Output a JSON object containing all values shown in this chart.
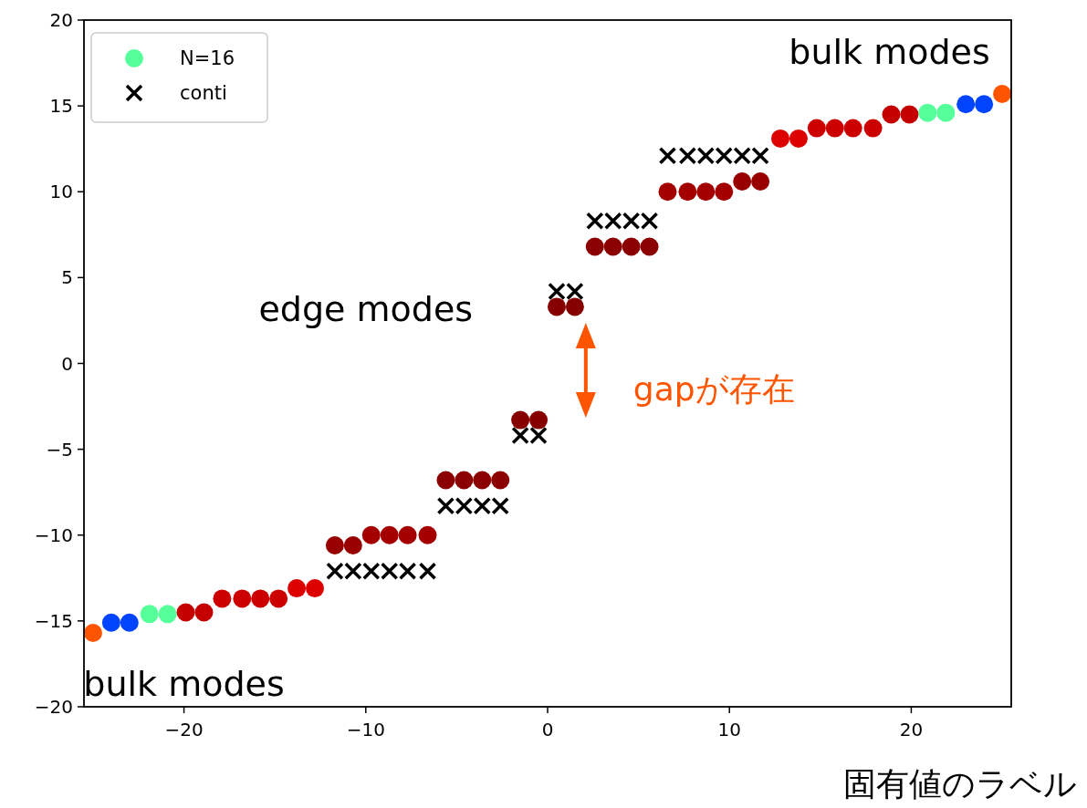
{
  "chart_data": {
    "type": "scatter",
    "xlabel": "固有値のラベル",
    "xlim": [
      -25.5,
      25.5
    ],
    "ylim": [
      -20,
      20
    ],
    "xticks": [
      -20,
      -10,
      0,
      10,
      20
    ],
    "yticks": [
      -20,
      -15,
      -10,
      -5,
      0,
      5,
      10,
      15,
      20
    ],
    "grid": false,
    "legend": "top left",
    "series": [
      {
        "name": "N=16",
        "type": "scatter",
        "marker": "circle",
        "color": "#55ff99",
        "x": [
          -25.0,
          -24.0,
          -23.0,
          -21.9,
          -20.9,
          -19.9,
          -18.9,
          -17.9,
          -16.8,
          -15.8,
          -14.8,
          -13.8,
          -12.8,
          -11.7,
          -10.7,
          -9.7,
          -8.7,
          -7.7,
          -6.6,
          -5.6,
          -4.6,
          -3.6,
          -2.6,
          -1.5,
          -0.5,
          0.5,
          1.5,
          2.6,
          3.6,
          4.6,
          5.6,
          6.6,
          7.7,
          8.7,
          9.7,
          10.7,
          11.7,
          12.8,
          13.8,
          14.8,
          15.8,
          16.8,
          17.9,
          18.9,
          19.9,
          20.9,
          21.9,
          23.0,
          24.0,
          25.0
        ],
        "values": [
          -15.7,
          -15.1,
          -15.1,
          -14.6,
          -14.6,
          -14.5,
          -14.5,
          -13.7,
          -13.7,
          -13.7,
          -13.7,
          -13.1,
          -13.1,
          -10.6,
          -10.6,
          -10.0,
          -10.0,
          -10.0,
          -10.0,
          -6.8,
          -6.8,
          -6.8,
          -6.8,
          -3.3,
          -3.3,
          3.3,
          3.3,
          6.8,
          6.8,
          6.8,
          6.8,
          10.0,
          10.0,
          10.0,
          10.0,
          10.6,
          10.6,
          13.1,
          13.1,
          13.7,
          13.7,
          13.7,
          13.7,
          14.5,
          14.5,
          14.6,
          14.6,
          15.1,
          15.1,
          15.7
        ],
        "colors": [
          "#ff5500",
          "#0044ff",
          "#0044ff",
          "#55ff99",
          "#55ff99",
          "#c40000",
          "#c40000",
          "#cc0000",
          "#cc0000",
          "#cc0000",
          "#cc0000",
          "#dd0000",
          "#dd0000",
          "#980000",
          "#980000",
          "#a40000",
          "#a40000",
          "#a40000",
          "#a40000",
          "#8b0000",
          "#8b0000",
          "#8b0000",
          "#8b0000",
          "#870000",
          "#870000",
          "#870000",
          "#870000",
          "#8b0000",
          "#8b0000",
          "#8b0000",
          "#8b0000",
          "#a40000",
          "#a40000",
          "#a40000",
          "#a40000",
          "#980000",
          "#980000",
          "#dd0000",
          "#dd0000",
          "#cc0000",
          "#cc0000",
          "#cc0000",
          "#cc0000",
          "#c40000",
          "#c40000",
          "#55ff99",
          "#55ff99",
          "#0044ff",
          "#0044ff",
          "#ff5500"
        ]
      },
      {
        "name": "conti",
        "type": "scatter",
        "marker": "cross",
        "color": "#000000",
        "x": [
          -11.7,
          -10.7,
          -9.7,
          -8.7,
          -7.7,
          -6.6,
          -5.6,
          -4.6,
          -3.6,
          -2.6,
          -1.5,
          -0.5,
          0.5,
          1.5,
          2.6,
          3.6,
          4.6,
          5.6,
          6.6,
          7.7,
          8.7,
          9.7,
          10.7,
          11.7
        ],
        "values": [
          -12.1,
          -12.1,
          -12.1,
          -12.1,
          -12.1,
          -12.1,
          -8.3,
          -8.3,
          -8.3,
          -8.3,
          -4.2,
          -4.2,
          4.2,
          4.2,
          8.3,
          8.3,
          8.3,
          8.3,
          12.1,
          12.1,
          12.1,
          12.1,
          12.1,
          12.1
        ]
      }
    ],
    "annotations": [
      "bulk modes",
      "bulk modes",
      "edge modes",
      "gapが存在"
    ]
  }
}
